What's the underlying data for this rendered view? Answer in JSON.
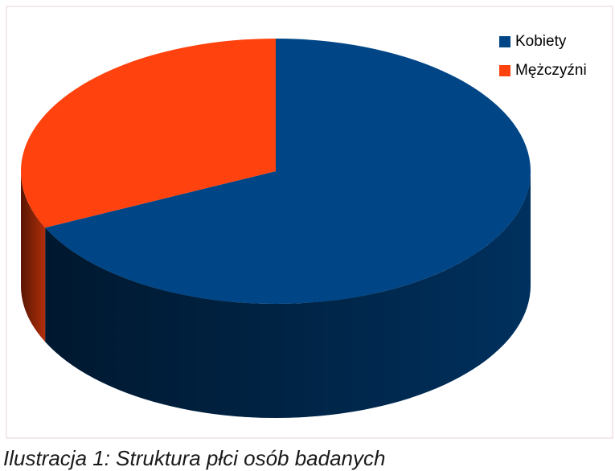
{
  "chart_data": {
    "type": "pie",
    "categories": [
      "Kobiety",
      "Mężczyźni"
    ],
    "values": [
      68,
      32
    ],
    "colors": [
      "#004586",
      "#ff420e"
    ],
    "caption": "Ilustracja 1: Struktura płci osób badanych"
  }
}
